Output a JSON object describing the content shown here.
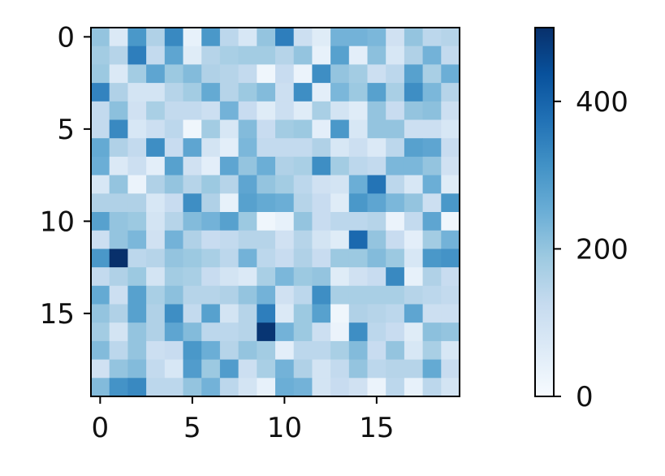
{
  "chart_data": {
    "type": "heatmap",
    "colormap": "Blues",
    "title": "",
    "xlabel": "",
    "ylabel": "",
    "x_ticks": [
      0,
      5,
      10,
      15
    ],
    "y_ticks": [
      0,
      5,
      10,
      15
    ],
    "x_tick_labels": [
      "0",
      "5",
      "10",
      "15"
    ],
    "y_tick_labels": [
      "0",
      "5",
      "10",
      "15"
    ],
    "colorbar": {
      "range": [
        0,
        500
      ],
      "ticks": [
        0,
        200,
        400
      ],
      "tick_labels": [
        "0",
        "200",
        "400"
      ]
    },
    "grid": false,
    "n_rows": 20,
    "n_cols": 20,
    "values": [
      [
        200,
        70,
        300,
        160,
        330,
        40,
        300,
        140,
        80,
        200,
        350,
        110,
        60,
        240,
        240,
        230,
        100,
        200,
        140,
        150
      ],
      [
        180,
        150,
        350,
        130,
        270,
        60,
        150,
        170,
        180,
        180,
        150,
        200,
        40,
        280,
        50,
        210,
        80,
        160,
        240,
        130
      ],
      [
        190,
        70,
        180,
        270,
        190,
        220,
        160,
        150,
        130,
        20,
        120,
        30,
        320,
        200,
        180,
        110,
        140,
        280,
        170,
        250
      ],
      [
        340,
        160,
        90,
        90,
        150,
        180,
        260,
        150,
        190,
        220,
        110,
        320,
        50,
        230,
        190,
        280,
        170,
        320,
        230,
        150
      ],
      [
        130,
        210,
        100,
        170,
        130,
        130,
        110,
        240,
        120,
        60,
        110,
        60,
        170,
        90,
        60,
        200,
        120,
        200,
        210,
        110
      ],
      [
        130,
        330,
        80,
        110,
        140,
        20,
        180,
        80,
        220,
        120,
        180,
        190,
        50,
        300,
        80,
        200,
        200,
        110,
        110,
        80
      ],
      [
        260,
        160,
        130,
        320,
        120,
        270,
        90,
        50,
        230,
        130,
        130,
        130,
        160,
        80,
        110,
        70,
        140,
        280,
        270,
        120
      ],
      [
        250,
        70,
        110,
        50,
        280,
        100,
        50,
        270,
        200,
        250,
        160,
        170,
        320,
        180,
        140,
        130,
        230,
        230,
        200,
        100
      ],
      [
        80,
        200,
        30,
        160,
        200,
        150,
        190,
        150,
        270,
        200,
        180,
        140,
        100,
        90,
        250,
        370,
        140,
        80,
        250,
        60
      ],
      [
        160,
        160,
        160,
        80,
        120,
        320,
        160,
        40,
        280,
        260,
        250,
        150,
        120,
        60,
        300,
        270,
        230,
        200,
        110,
        300
      ],
      [
        280,
        200,
        190,
        90,
        150,
        220,
        240,
        280,
        190,
        20,
        40,
        200,
        120,
        140,
        140,
        150,
        30,
        130,
        270,
        20
      ],
      [
        110,
        200,
        230,
        100,
        240,
        160,
        120,
        130,
        150,
        150,
        100,
        150,
        90,
        60,
        390,
        200,
        120,
        50,
        180,
        240
      ],
      [
        300,
        500,
        140,
        150,
        200,
        190,
        170,
        140,
        240,
        140,
        120,
        160,
        120,
        190,
        190,
        220,
        190,
        80,
        300,
        310
      ],
      [
        130,
        160,
        190,
        90,
        180,
        170,
        120,
        90,
        70,
        170,
        230,
        190,
        200,
        60,
        100,
        120,
        330,
        40,
        160,
        120
      ],
      [
        260,
        110,
        280,
        170,
        210,
        150,
        150,
        160,
        200,
        240,
        100,
        140,
        320,
        170,
        170,
        170,
        170,
        150,
        140,
        130
      ],
      [
        200,
        160,
        280,
        160,
        320,
        130,
        280,
        90,
        150,
        350,
        70,
        190,
        280,
        20,
        160,
        150,
        140,
        270,
        110,
        110
      ],
      [
        180,
        90,
        200,
        160,
        270,
        220,
        140,
        140,
        150,
        490,
        240,
        190,
        110,
        30,
        320,
        140,
        120,
        60,
        210,
        200
      ],
      [
        220,
        140,
        200,
        110,
        120,
        300,
        250,
        150,
        200,
        180,
        50,
        140,
        140,
        170,
        220,
        120,
        200,
        80,
        170,
        80
      ],
      [
        100,
        200,
        220,
        130,
        80,
        290,
        190,
        290,
        110,
        170,
        240,
        160,
        90,
        130,
        200,
        140,
        150,
        150,
        260,
        120
      ],
      [
        220,
        310,
        330,
        140,
        140,
        200,
        240,
        140,
        90,
        40,
        250,
        240,
        90,
        120,
        100,
        30,
        140,
        40,
        140,
        90
      ]
    ]
  }
}
